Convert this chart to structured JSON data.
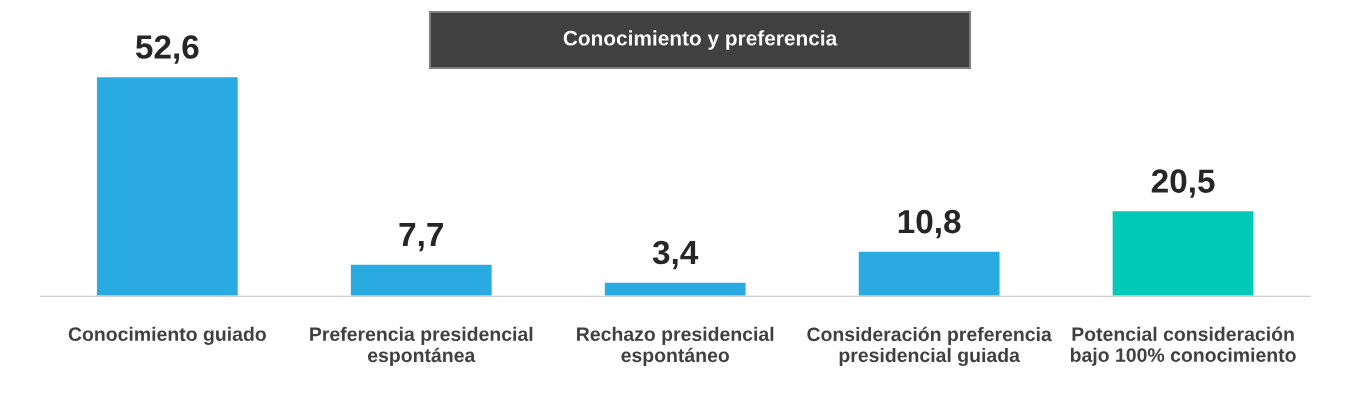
{
  "chart_data": {
    "type": "bar",
    "title": "Conocimiento y preferencia",
    "categories": [
      "Conocimiento guiado",
      "Preferencia presidencial espontánea",
      "Rechazo presidencial espontáneo",
      "Consideración preferencia presidencial guiada",
      "Potencial consideración bajo 100% conocimiento"
    ],
    "values": [
      52.6,
      7.7,
      3.4,
      10.8,
      20.5
    ],
    "colors": [
      "#29abe2",
      "#29abe2",
      "#29abe2",
      "#29abe2",
      "#00c9b7"
    ],
    "value_labels": [
      "52,6",
      "7,7",
      "3,4",
      "10,8",
      "20,5"
    ],
    "grid": false,
    "legend": false
  }
}
